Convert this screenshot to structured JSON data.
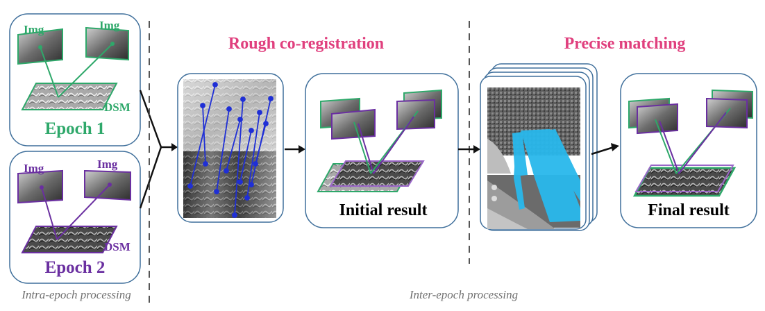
{
  "epoch1": {
    "img_left": "Img",
    "img_right": "Img",
    "dsm": "DSM",
    "title": "Epoch 1"
  },
  "epoch2": {
    "img_left": "Img",
    "img_right": "Img",
    "dsm": "DSM",
    "title": "Epoch 2"
  },
  "stages": {
    "rough_title": "Rough  co-registration",
    "precise_title": "Precise matching",
    "initial_result": "Initial result",
    "final_result": "Final result"
  },
  "footer": {
    "intra": "Intra-epoch processing",
    "inter": "Inter-epoch processing"
  },
  "colors": {
    "epoch1": "#2ea86a",
    "epoch2": "#6a2fa0",
    "heading": "#e0407e",
    "frame": "#3f6f9b",
    "match_lines": "#1f2fd6",
    "tie_points": "#29b8ec"
  }
}
